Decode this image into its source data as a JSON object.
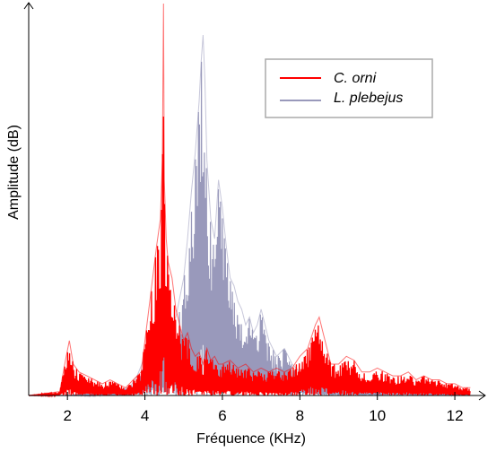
{
  "chart_data": {
    "type": "line",
    "xlabel": "Fréquence (KHz)",
    "ylabel": "Amplitude (dB)",
    "xlim": [
      1,
      12.6
    ],
    "ylim": [
      0,
      100
    ],
    "x_ticks": [
      "2",
      "4",
      "6",
      "8",
      "10",
      "12"
    ],
    "grid": false,
    "legend_position": "top-right",
    "series": [
      {
        "name": "C. orni",
        "color": "#ff0000",
        "x": [
          1.0,
          1.8,
          1.95,
          2.05,
          2.15,
          2.3,
          2.5,
          2.7,
          2.9,
          3.1,
          3.3,
          3.5,
          3.7,
          3.9,
          4.0,
          4.1,
          4.2,
          4.3,
          4.4,
          4.45,
          4.48,
          4.5,
          4.55,
          4.6,
          4.7,
          4.8,
          4.9,
          5.0,
          5.1,
          5.2,
          5.3,
          5.4,
          5.5,
          5.6,
          5.7,
          5.8,
          5.9,
          6.0,
          6.2,
          6.4,
          6.6,
          6.8,
          7.0,
          7.2,
          7.4,
          7.6,
          7.8,
          8.0,
          8.2,
          8.4,
          8.5,
          8.6,
          8.7,
          8.8,
          9.0,
          9.2,
          9.4,
          9.6,
          9.8,
          10.0,
          10.2,
          10.4,
          10.6,
          10.8,
          11.0,
          11.2,
          11.4,
          11.6,
          11.8,
          12.0,
          12.2,
          12.4
        ],
        "values": [
          0,
          1,
          9,
          14,
          8,
          6,
          5,
          4,
          3,
          4,
          3,
          2,
          4,
          6,
          14,
          22,
          30,
          38,
          45,
          60,
          100,
          55,
          40,
          34,
          30,
          22,
          18,
          14,
          16,
          12,
          10,
          11,
          8,
          12,
          9,
          10,
          8,
          8,
          9,
          7,
          8,
          6,
          7,
          6,
          7,
          6,
          7,
          10,
          12,
          18,
          20,
          16,
          12,
          8,
          8,
          10,
          9,
          6,
          6,
          7,
          6,
          5,
          5,
          6,
          4,
          5,
          4,
          4,
          3,
          3,
          2,
          2
        ]
      },
      {
        "name": "L. plebejus",
        "color": "#9999bb",
        "x": [
          1.0,
          2.0,
          3.0,
          3.6,
          3.8,
          4.0,
          4.2,
          4.4,
          4.6,
          4.8,
          5.0,
          5.1,
          5.2,
          5.3,
          5.4,
          5.45,
          5.5,
          5.55,
          5.6,
          5.7,
          5.8,
          5.9,
          6.0,
          6.1,
          6.2,
          6.3,
          6.4,
          6.5,
          6.6,
          6.7,
          6.8,
          6.9,
          7.0,
          7.1,
          7.2,
          7.4,
          7.6,
          7.8,
          8.0,
          8.2,
          8.4,
          8.6,
          8.8,
          9.0,
          9.5,
          10.0,
          10.5,
          11.0,
          11.5,
          12.0,
          12.4
        ],
        "values": [
          0,
          0,
          1,
          2,
          5,
          10,
          14,
          18,
          16,
          20,
          30,
          40,
          52,
          62,
          75,
          85,
          92,
          80,
          60,
          45,
          40,
          55,
          48,
          38,
          30,
          28,
          24,
          22,
          18,
          20,
          16,
          18,
          22,
          18,
          14,
          10,
          12,
          8,
          6,
          5,
          4,
          4,
          3,
          3,
          2,
          2,
          2,
          1,
          1,
          1,
          1
        ]
      }
    ]
  }
}
